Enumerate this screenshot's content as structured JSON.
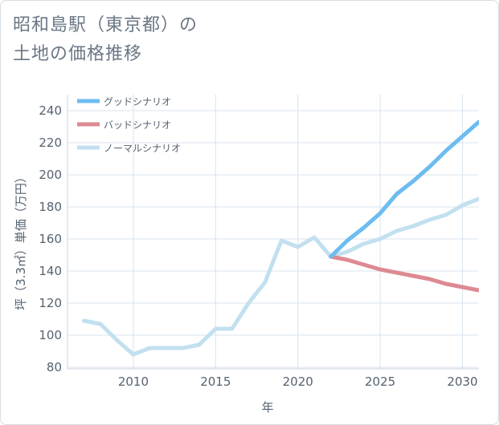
{
  "title": {
    "line1": "昭和島駅（東京都）の",
    "line2": "土地の価格推移"
  },
  "chart_data": {
    "type": "line",
    "xlabel": "年",
    "ylabel": "坪（3.3㎡）単価（万円）",
    "xlim": [
      2006,
      2031
    ],
    "ylim": [
      79,
      250
    ],
    "xticks": [
      2010,
      2015,
      2020,
      2025,
      2030
    ],
    "yticks": [
      80,
      100,
      120,
      140,
      160,
      180,
      200,
      220,
      240
    ],
    "legend_position": "top-left",
    "series": [
      {
        "name": "グッドシナリオ",
        "color": "#6cbcf0",
        "x": [
          2022,
          2023,
          2024,
          2025,
          2026,
          2027,
          2028,
          2029,
          2030,
          2031
        ],
        "values": [
          149,
          159,
          167,
          176,
          188,
          196,
          205,
          215,
          224,
          233
        ]
      },
      {
        "name": "バッドシナリオ",
        "color": "#de8a92",
        "x": [
          2022,
          2023,
          2024,
          2025,
          2026,
          2027,
          2028,
          2029,
          2030,
          2031
        ],
        "values": [
          149,
          147,
          144,
          141,
          139,
          137,
          135,
          132,
          130,
          128
        ]
      },
      {
        "name": "ノーマルシナリオ",
        "color": "#c2e0ef",
        "x": [
          2007,
          2008,
          2009,
          2010,
          2011,
          2012,
          2013,
          2014,
          2015,
          2016,
          2017,
          2018,
          2019,
          2020,
          2021,
          2022,
          2023,
          2024,
          2025,
          2026,
          2027,
          2028,
          2029,
          2030,
          2031
        ],
        "values": [
          109,
          107,
          97,
          88,
          92,
          92,
          92,
          94,
          104,
          104,
          120,
          133,
          159,
          155,
          161,
          149,
          152,
          157,
          160,
          165,
          168,
          172,
          175,
          181,
          185
        ]
      }
    ]
  }
}
